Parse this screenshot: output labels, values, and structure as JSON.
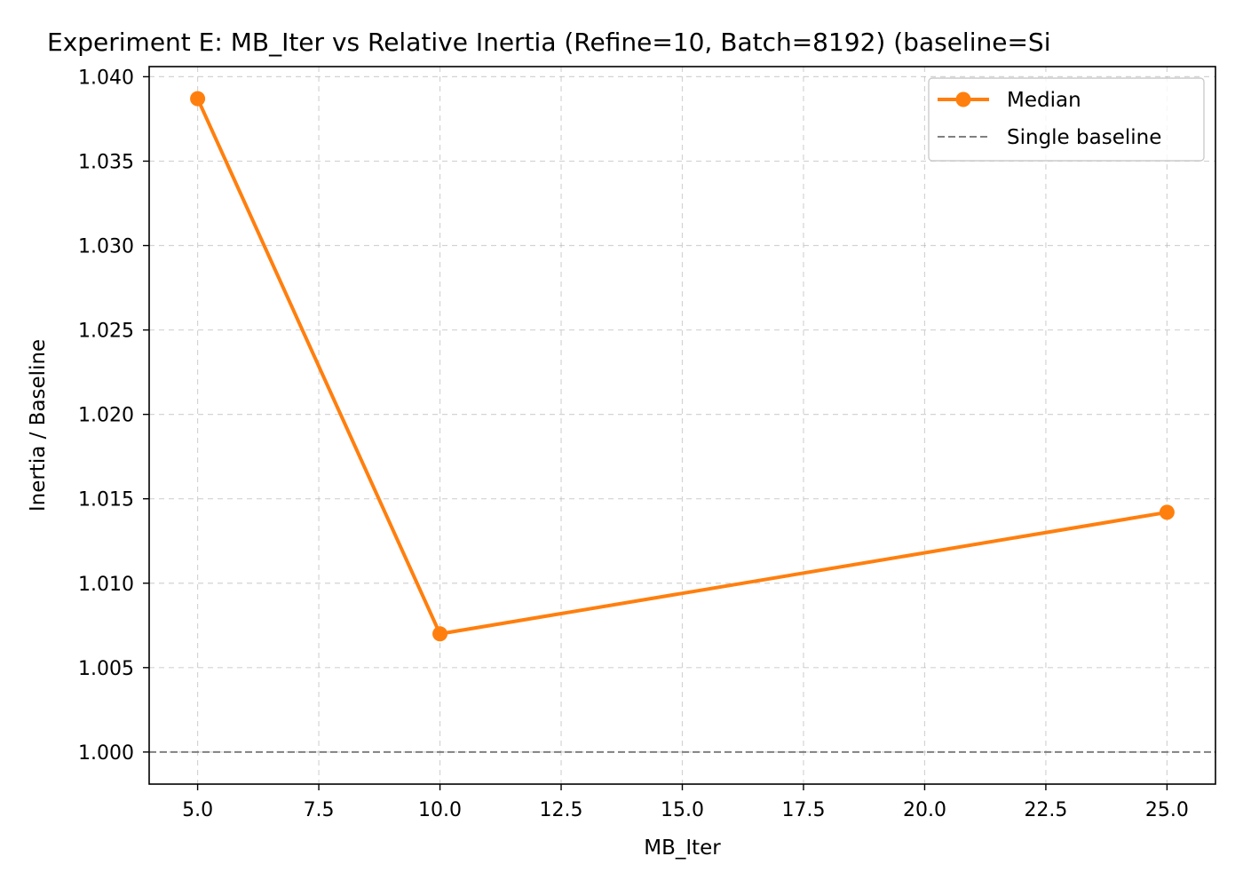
{
  "chart_data": {
    "type": "line",
    "title": "Experiment E: MB_Iter vs Relative Inertia (Refine=10, Batch=8192) (baseline=Si",
    "xlabel": "MB_Iter",
    "ylabel": "Inertia / Baseline",
    "xlim": [
      4.0,
      26.0
    ],
    "ylim": [
      0.9981,
      1.0406
    ],
    "x_ticks": [
      5.0,
      7.5,
      10.0,
      12.5,
      15.0,
      17.5,
      20.0,
      22.5,
      25.0
    ],
    "x_tick_labels": [
      "5.0",
      "7.5",
      "10.0",
      "12.5",
      "15.0",
      "17.5",
      "20.0",
      "22.5",
      "25.0"
    ],
    "y_ticks": [
      1.0,
      1.005,
      1.01,
      1.015,
      1.02,
      1.025,
      1.03,
      1.035,
      1.04
    ],
    "y_tick_labels": [
      "1.000",
      "1.005",
      "1.010",
      "1.015",
      "1.020",
      "1.025",
      "1.030",
      "1.035",
      "1.040"
    ],
    "grid": true,
    "legend_position": "top-right",
    "series": [
      {
        "name": "Median",
        "color": "#ff7f0e",
        "marker": "circle",
        "x": [
          5,
          10,
          25
        ],
        "y": [
          1.0387,
          1.007,
          1.0142
        ]
      }
    ],
    "reference_lines": [
      {
        "name": "Single baseline",
        "y": 1.0,
        "color": "#808080",
        "style": "dashed"
      }
    ]
  }
}
